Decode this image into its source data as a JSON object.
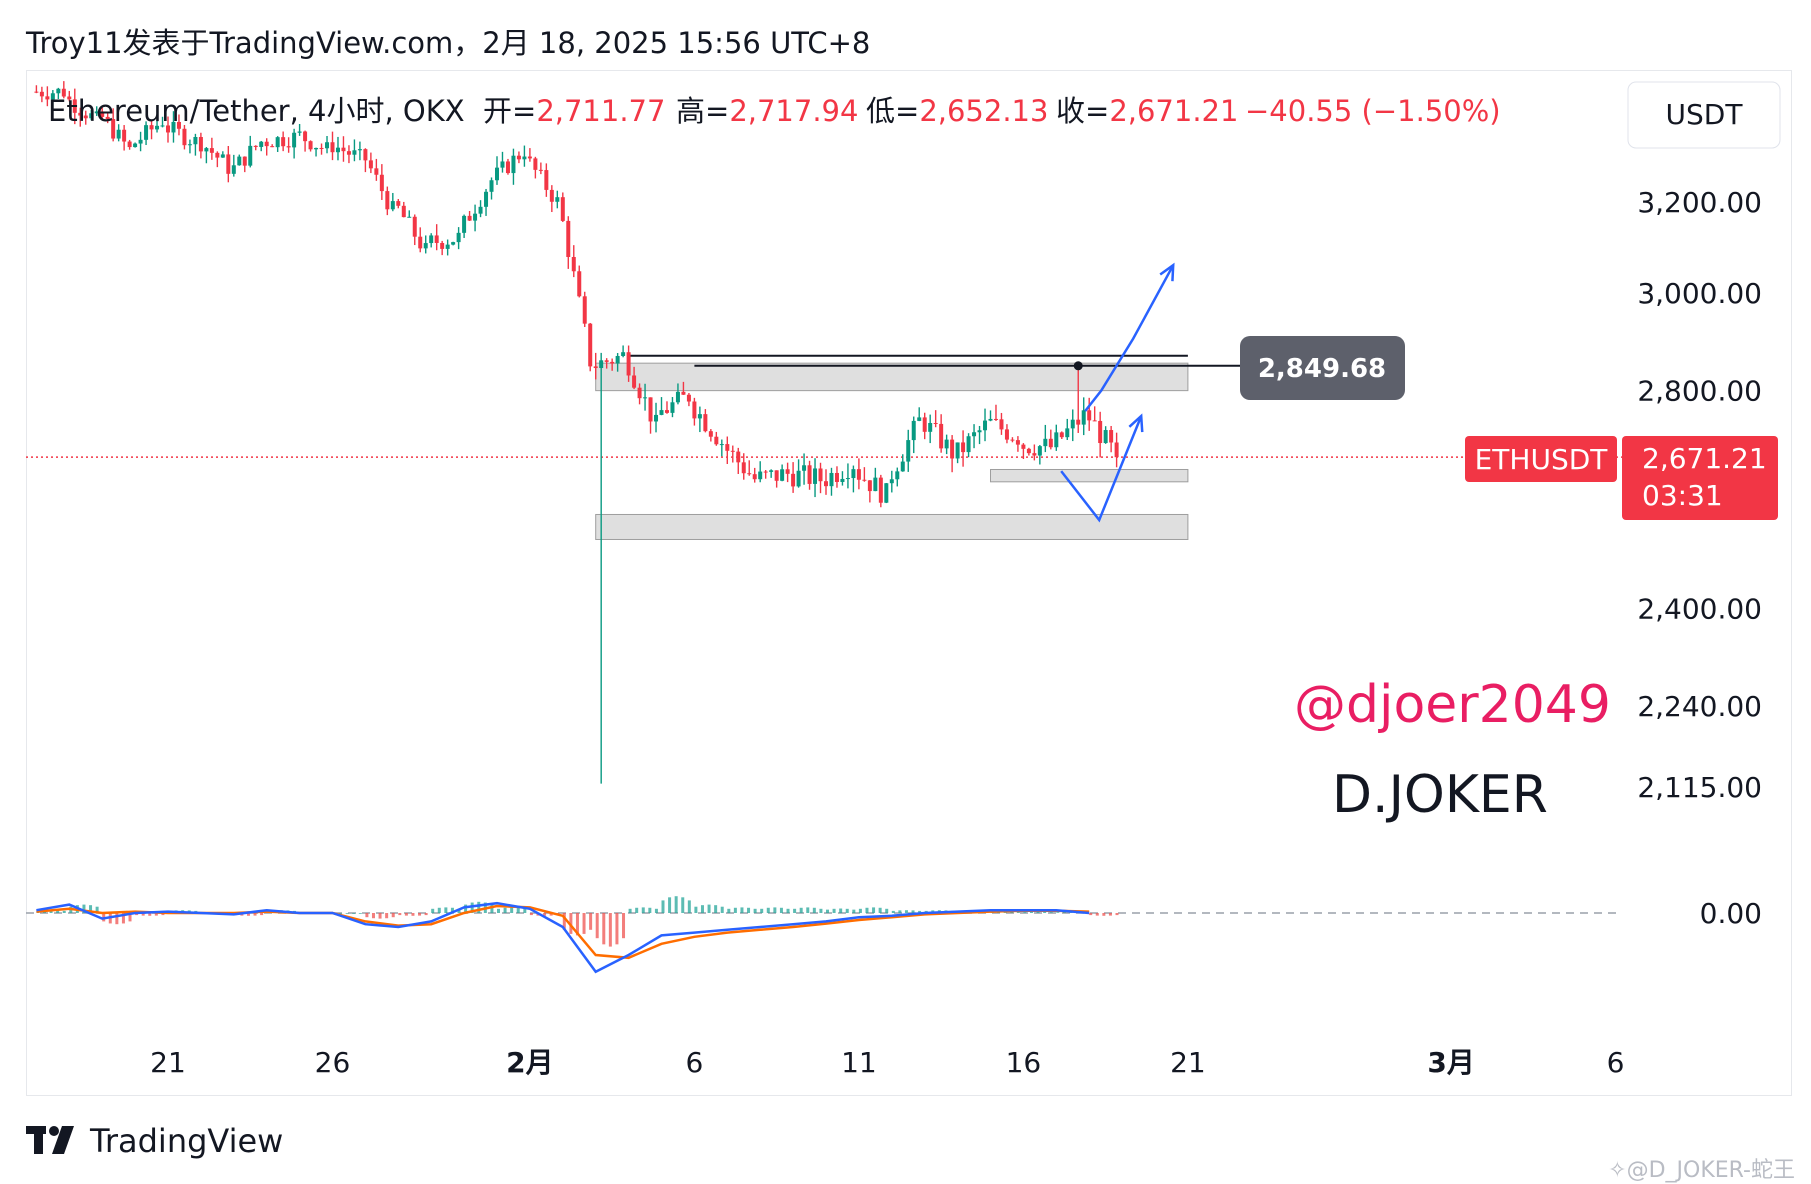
{
  "header": {
    "publish_line": "Troy11发表于TradingView.com，2月 18, 2025 15:56 UTC+8"
  },
  "legend": {
    "symbol": "Ethereum/Tether, 4小时, OKX",
    "open_label": "开=",
    "open_value": "2,711.77",
    "high_label": "高=",
    "high_value": "2,717.94",
    "low_label": "低=",
    "low_value": "2,652.13",
    "close_label": "收=",
    "close_value": "2,671.21",
    "change": "−40.55 (−1.50%)"
  },
  "currency_button": "USDT",
  "price_axis": {
    "labels": [
      "3,200.00",
      "3,000.00",
      "2,800.00",
      "2,400.00",
      "2,240.00",
      "2,115.00",
      "0.00"
    ],
    "scale": "log"
  },
  "time_axis": {
    "labels": [
      "21",
      "26",
      "2月",
      "6",
      "11",
      "16",
      "21",
      "3月",
      "6"
    ],
    "bold_labels": [
      "2月",
      "3月"
    ]
  },
  "current_price": {
    "symbol_tag": "ETHUSDT",
    "price": "2,671.21",
    "countdown": "03:31"
  },
  "marker_label": "2,849.68",
  "annotations": {
    "handle": "@djoer2049",
    "signature": "D.JOKER"
  },
  "footer": {
    "brand": "TradingView",
    "watermark": "✧@D_JOKER-蛇王"
  },
  "colors": {
    "up": "#089981",
    "down": "#f23645",
    "macd_line": "#2962ff",
    "signal_line": "#ff6d00",
    "arrows": "#2962ff",
    "zone_fill": "#d9d9d9",
    "marker_bg": "#5d606b",
    "handle": "#e91e63"
  },
  "chart_data": {
    "type": "candlestick",
    "symbol": "Ethereum/Tether",
    "interval": "4小时",
    "exchange": "OKX",
    "ohlc_last": {
      "open": 2711.77,
      "high": 2717.94,
      "low": 2652.13,
      "close": 2671.21,
      "change": -40.55,
      "change_pct": -1.5
    },
    "y_ticks": [
      3200,
      3000,
      2800,
      2400,
      2240,
      2115
    ],
    "x_ticks": [
      "21",
      "26",
      "2月",
      "6",
      "11",
      "16",
      "21",
      "3月",
      "6"
    ],
    "daily_close": [
      {
        "date": "2025-01-17",
        "close": 3460
      },
      {
        "date": "2025-01-18",
        "close": 3390
      },
      {
        "date": "2025-01-19",
        "close": 3320
      },
      {
        "date": "2025-01-20",
        "close": 3390
      },
      {
        "date": "2025-01-21",
        "close": 3340
      },
      {
        "date": "2025-01-22",
        "close": 3280
      },
      {
        "date": "2025-01-23",
        "close": 3340
      },
      {
        "date": "2025-01-24",
        "close": 3350
      },
      {
        "date": "2025-01-25",
        "close": 3320
      },
      {
        "date": "2025-01-26",
        "close": 3300
      },
      {
        "date": "2025-01-27",
        "close": 3180
      },
      {
        "date": "2025-01-28",
        "close": 3090
      },
      {
        "date": "2025-01-29",
        "close": 3120
      },
      {
        "date": "2025-01-30",
        "close": 3250
      },
      {
        "date": "2025-01-31",
        "close": 3320
      },
      {
        "date": "2025-02-01",
        "close": 3200
      },
      {
        "date": "2025-02-02",
        "close": 2860
      },
      {
        "date": "2025-02-03",
        "close": 2870
      },
      {
        "date": "2025-02-04",
        "close": 2730
      },
      {
        "date": "2025-02-05",
        "close": 2790
      },
      {
        "date": "2025-02-06",
        "close": 2700
      },
      {
        "date": "2025-02-07",
        "close": 2630
      },
      {
        "date": "2025-02-08",
        "close": 2640
      },
      {
        "date": "2025-02-09",
        "close": 2630
      },
      {
        "date": "2025-02-10",
        "close": 2660
      },
      {
        "date": "2025-02-11",
        "close": 2600
      },
      {
        "date": "2025-02-12",
        "close": 2740
      },
      {
        "date": "2025-02-13",
        "close": 2680
      },
      {
        "date": "2025-02-14",
        "close": 2730
      },
      {
        "date": "2025-02-15",
        "close": 2710
      },
      {
        "date": "2025-02-16",
        "close": 2690
      },
      {
        "date": "2025-02-17",
        "close": 2750
      },
      {
        "date": "2025-02-18",
        "close": 2671.21
      }
    ],
    "extremes": [
      {
        "date": "2025-02-03",
        "low": 2120
      },
      {
        "date": "2025-02-04",
        "high": 2830
      },
      {
        "date": "2025-02-17",
        "high": 2849.68
      }
    ],
    "zones": [
      {
        "name": "resistance",
        "from": 2800,
        "to": 2855
      },
      {
        "name": "support-small",
        "from": 2625,
        "to": 2648
      },
      {
        "name": "support",
        "from": 2520,
        "to": 2565
      }
    ],
    "lines": [
      {
        "value": 2870
      },
      {
        "value": 2849.68
      }
    ],
    "macd": {
      "zero": 0,
      "macd_line": [
        10,
        30,
        -20,
        0,
        5,
        0,
        -5,
        10,
        0,
        0,
        -40,
        -50,
        -30,
        20,
        35,
        15,
        -50,
        -210,
        -150,
        -80,
        -70,
        -60,
        -50,
        -40,
        -30,
        -15,
        -10,
        0,
        5,
        10,
        10,
        10,
        0
      ],
      "signal_line": [
        5,
        15,
        0,
        5,
        0,
        0,
        0,
        5,
        0,
        0,
        -30,
        -45,
        -40,
        0,
        25,
        20,
        -10,
        -150,
        -160,
        -110,
        -85,
        -70,
        -60,
        -50,
        -38,
        -25,
        -15,
        -5,
        0,
        5,
        8,
        8,
        5
      ]
    }
  }
}
